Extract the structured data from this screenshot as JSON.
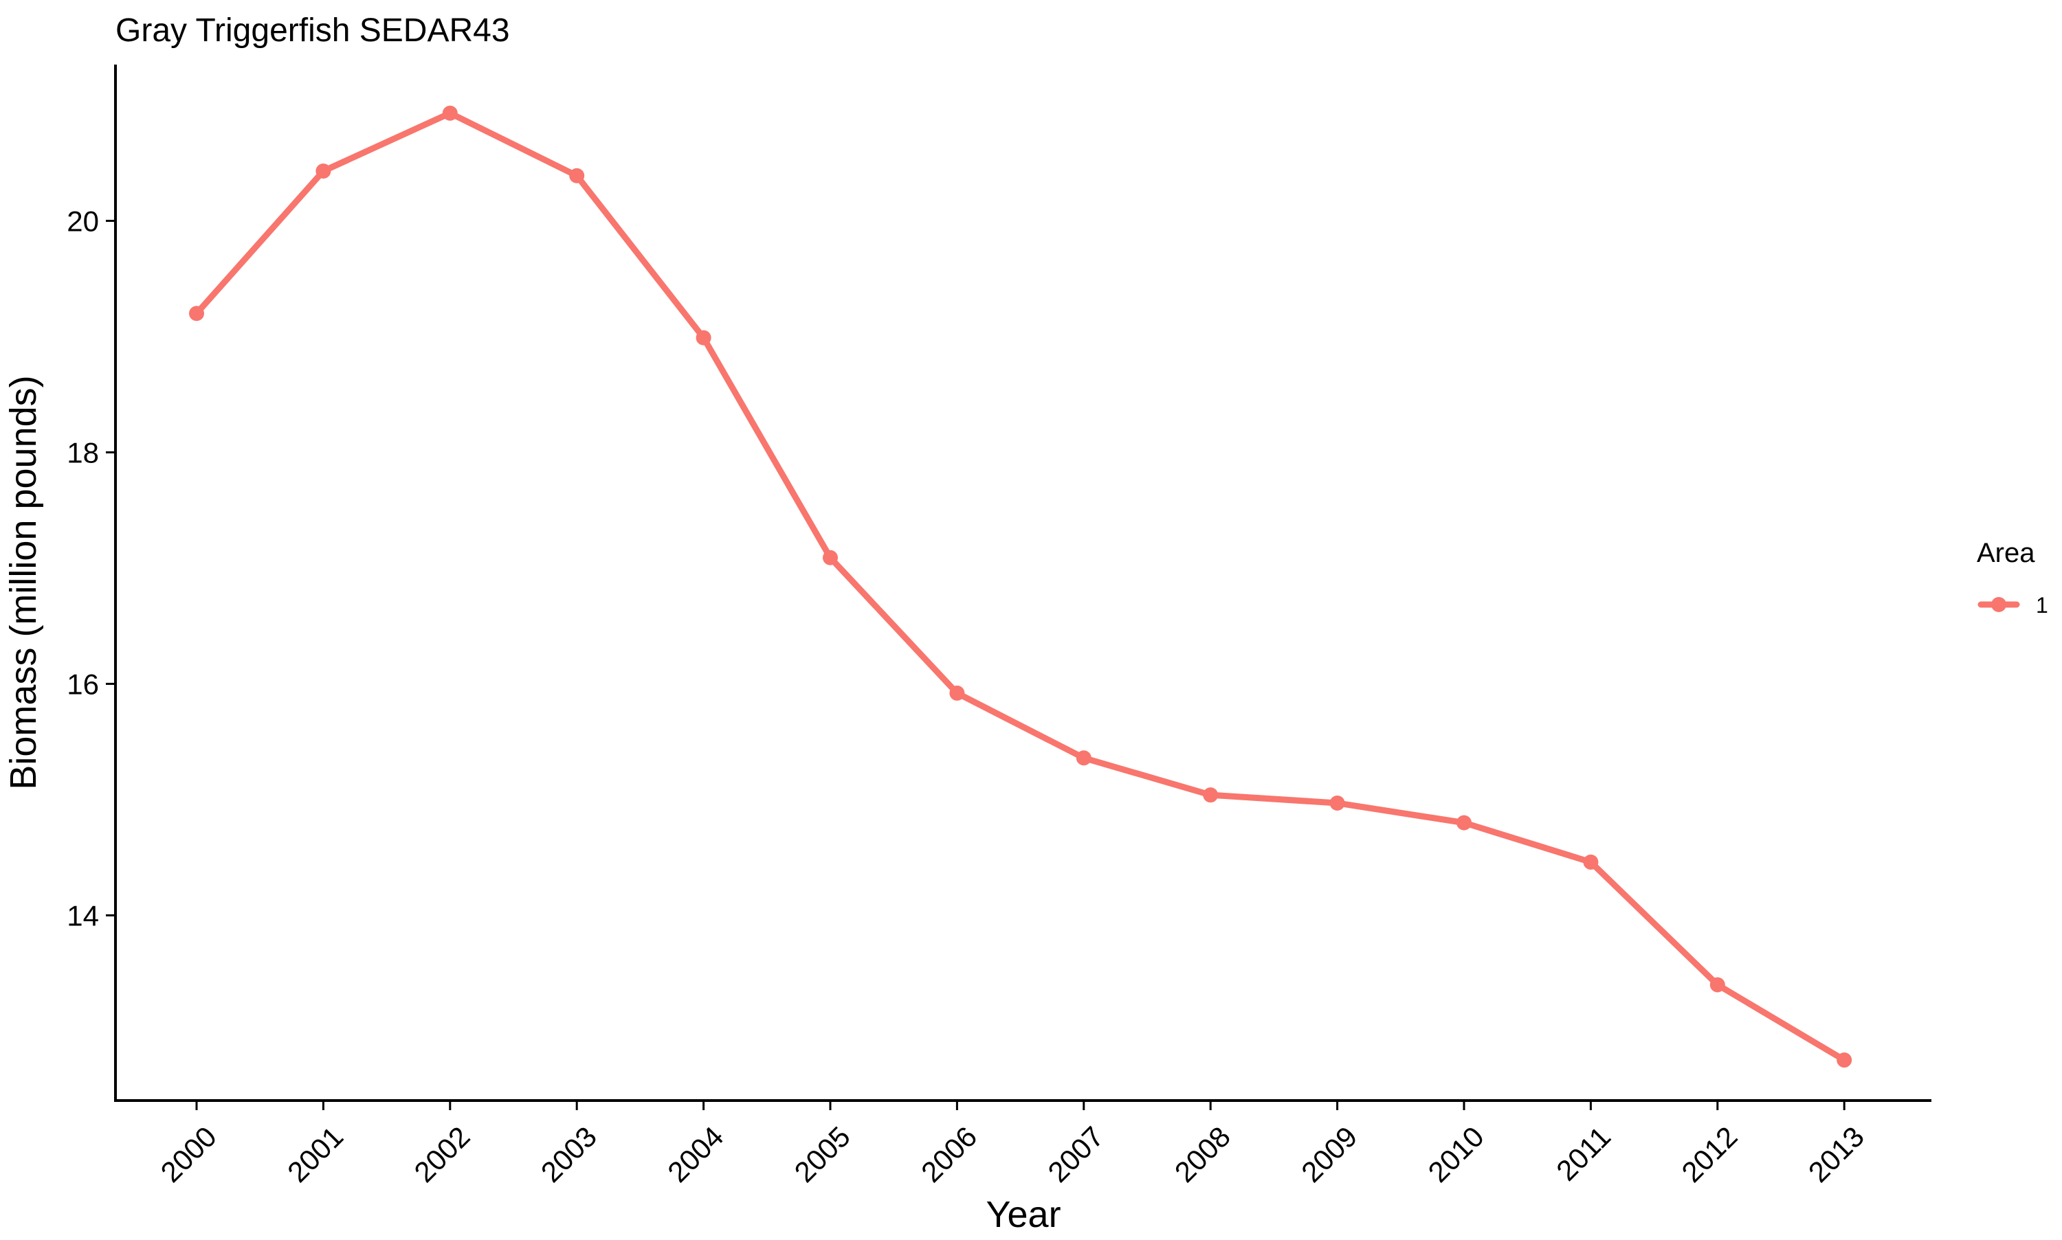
{
  "chart_data": {
    "type": "line",
    "title": "Gray Triggerfish SEDAR43",
    "xlabel": "Year",
    "ylabel": "Biomass (million pounds)",
    "categories": [
      "2000",
      "2001",
      "2002",
      "2003",
      "2004",
      "2005",
      "2006",
      "2007",
      "2008",
      "2009",
      "2010",
      "2011",
      "2012",
      "2013"
    ],
    "series": [
      {
        "name": "1",
        "color": "#F8766D",
        "values": [
          19.2,
          20.43,
          20.93,
          20.39,
          18.99,
          17.09,
          15.92,
          15.36,
          15.04,
          14.97,
          14.8,
          14.46,
          13.4,
          12.75
        ]
      }
    ],
    "ylim": [
      12.4,
      21.35
    ],
    "yticks": [
      14,
      16,
      18,
      20
    ],
    "grid": false,
    "legend": {
      "title": "Area",
      "placement": "right"
    }
  }
}
